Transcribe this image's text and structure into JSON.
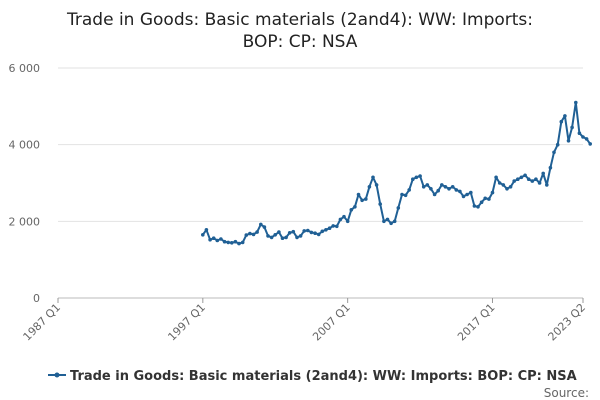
{
  "chart_data": {
    "type": "line",
    "title_line1": "Trade in Goods: Basic materials (2and4): WW: Imports:",
    "title_line2": "BOP: CP: NSA",
    "xlabel": "",
    "ylabel": "",
    "ylim": [
      0,
      6000
    ],
    "y_ticks": [
      0,
      2000,
      4000,
      6000
    ],
    "y_tick_labels": [
      "0",
      "2 000",
      "4 000",
      "6 000"
    ],
    "x_ticks": [
      {
        "label": "1987 Q1",
        "year": 1987.0
      },
      {
        "label": "1997 Q1",
        "year": 1997.0
      },
      {
        "label": "2007 Q1",
        "year": 2007.0
      },
      {
        "label": "2017 Q1",
        "year": 2017.0
      },
      {
        "label": "2023 Q2",
        "year": 2023.25
      }
    ],
    "xlim": [
      1987.0,
      2023.25
    ],
    "grid": true,
    "legend_position": "bottom",
    "series_color": "#206095",
    "series": [
      {
        "name": "Trade in Goods: Basic materials (2and4): WW: Imports: BOP: CP: NSA",
        "start_year": 1997.0,
        "step": 0.25,
        "values": [
          1650,
          1780,
          1520,
          1560,
          1500,
          1540,
          1470,
          1450,
          1440,
          1470,
          1420,
          1450,
          1640,
          1680,
          1660,
          1720,
          1920,
          1850,
          1620,
          1580,
          1650,
          1720,
          1560,
          1580,
          1700,
          1730,
          1580,
          1620,
          1750,
          1760,
          1710,
          1690,
          1660,
          1740,
          1780,
          1820,
          1880,
          1870,
          2050,
          2120,
          2000,
          2300,
          2380,
          2700,
          2550,
          2580,
          2900,
          3150,
          2950,
          2450,
          2000,
          2050,
          1950,
          2000,
          2350,
          2700,
          2680,
          2820,
          3100,
          3150,
          3180,
          2900,
          2950,
          2850,
          2700,
          2800,
          2950,
          2900,
          2850,
          2900,
          2820,
          2780,
          2650,
          2700,
          2750,
          2400,
          2380,
          2500,
          2600,
          2580,
          2750,
          3150,
          3000,
          2950,
          2850,
          2900,
          3050,
          3100,
          3150,
          3200,
          3100,
          3050,
          3100,
          3000,
          3250,
          2950,
          3400,
          3800,
          4000,
          4600,
          4750,
          4100,
          4450,
          5100,
          4300,
          4200,
          4150,
          4020
        ]
      }
    ],
    "legend_label": "Trade in Goods: Basic materials (2and4): WW: Imports: BOP: CP: NSA",
    "source_label": "Source:"
  }
}
